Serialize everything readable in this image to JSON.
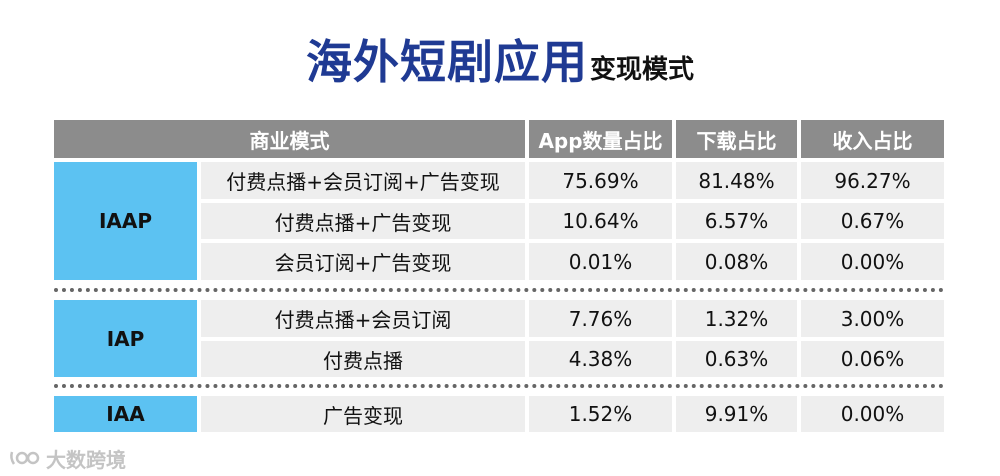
{
  "title": {
    "main": "海外短剧应用",
    "sub": "变现模式"
  },
  "header": {
    "model": "商业模式",
    "app_share": "App数量占比",
    "download_share": "下载占比",
    "revenue_share": "收入占比"
  },
  "groups": [
    {
      "name": "IAAP",
      "rows": [
        {
          "label": "付费点播+会员订阅+广告变现",
          "app": "75.69%",
          "download": "81.48%",
          "revenue": "96.27%"
        },
        {
          "label": "付费点播+广告变现",
          "app": "10.64%",
          "download": "6.57%",
          "revenue": "0.67%"
        },
        {
          "label": "会员订阅+广告变现",
          "app": "0.01%",
          "download": "0.08%",
          "revenue": "0.00%"
        }
      ]
    },
    {
      "name": "IAP",
      "rows": [
        {
          "label": "付费点播+会员订阅",
          "app": "7.76%",
          "download": "1.32%",
          "revenue": "3.00%"
        },
        {
          "label": "付费点播",
          "app": "4.38%",
          "download": "0.63%",
          "revenue": "0.06%"
        }
      ]
    },
    {
      "name": "IAA",
      "rows": [
        {
          "label": "广告变现",
          "app": "1.52%",
          "download": "9.91%",
          "revenue": "0.00%"
        }
      ]
    }
  ],
  "watermark": {
    "text": "大数跨境",
    "icon": "brand-logo-icon"
  },
  "colors": {
    "title": "#1f3a93",
    "header_bg": "#8c8c8c",
    "model_bg": "#5cc2f2",
    "cell_bg": "#eeeeee"
  }
}
